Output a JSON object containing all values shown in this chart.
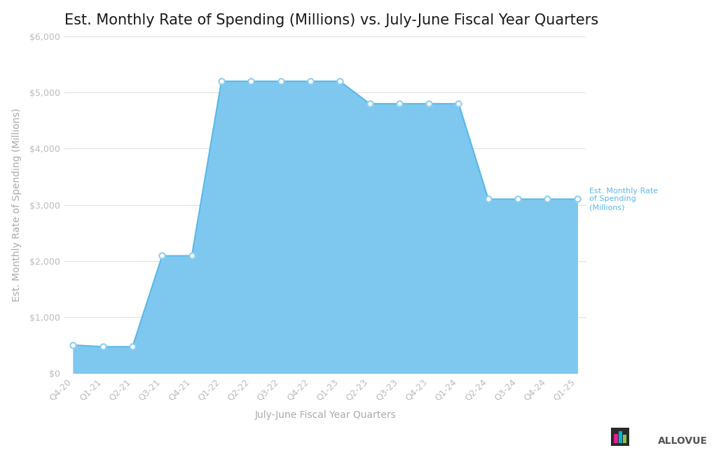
{
  "title": "Est. Monthly Rate of Spending (Millions) vs. July-June Fiscal Year Quarters",
  "xlabel": "July-June Fiscal Year Quarters",
  "ylabel": "Est. Monthly Rate of Spending (Millions)",
  "x_labels": [
    "Q4-20",
    "Q1-21",
    "Q2-21",
    "Q3-21",
    "Q4-21",
    "Q1-22",
    "Q2-22",
    "Q3-22",
    "Q4-22",
    "Q1-23",
    "Q2-23",
    "Q3-23",
    "Q4-23",
    "Q1-24",
    "Q2-24",
    "Q3-24",
    "Q4-24",
    "Q1-25"
  ],
  "y_values": [
    500,
    470,
    470,
    2090,
    2090,
    5200,
    5200,
    5200,
    5200,
    5200,
    4800,
    4800,
    4800,
    4800,
    3100,
    3100,
    3100,
    3100
  ],
  "fill_color": "#7EC8F0",
  "line_color": "#5BB8E8",
  "marker_color": "#FFFFFF",
  "marker_edge_color": "#8BCFEF",
  "ylim": [
    0,
    6000
  ],
  "yticks": [
    0,
    1000,
    2000,
    3000,
    4000,
    5000,
    6000
  ],
  "ytick_labels": [
    "$0",
    "$1,000",
    "$2,000",
    "$3,000",
    "$4,000",
    "$5,000",
    "$6,000"
  ],
  "title_fontsize": 15,
  "axis_label_fontsize": 10,
  "tick_fontsize": 9,
  "legend_text": "Est. Monthly Rate\nof Spending\n(Millions)",
  "legend_color": "#5BB8E8",
  "background_color": "#FFFFFF",
  "grid_color": "#E0E0E0",
  "tick_color": "#BBBBBB",
  "title_color": "#1A1A1A",
  "axis_label_color": "#AAAAAA",
  "allovue_text_color": "#555555"
}
